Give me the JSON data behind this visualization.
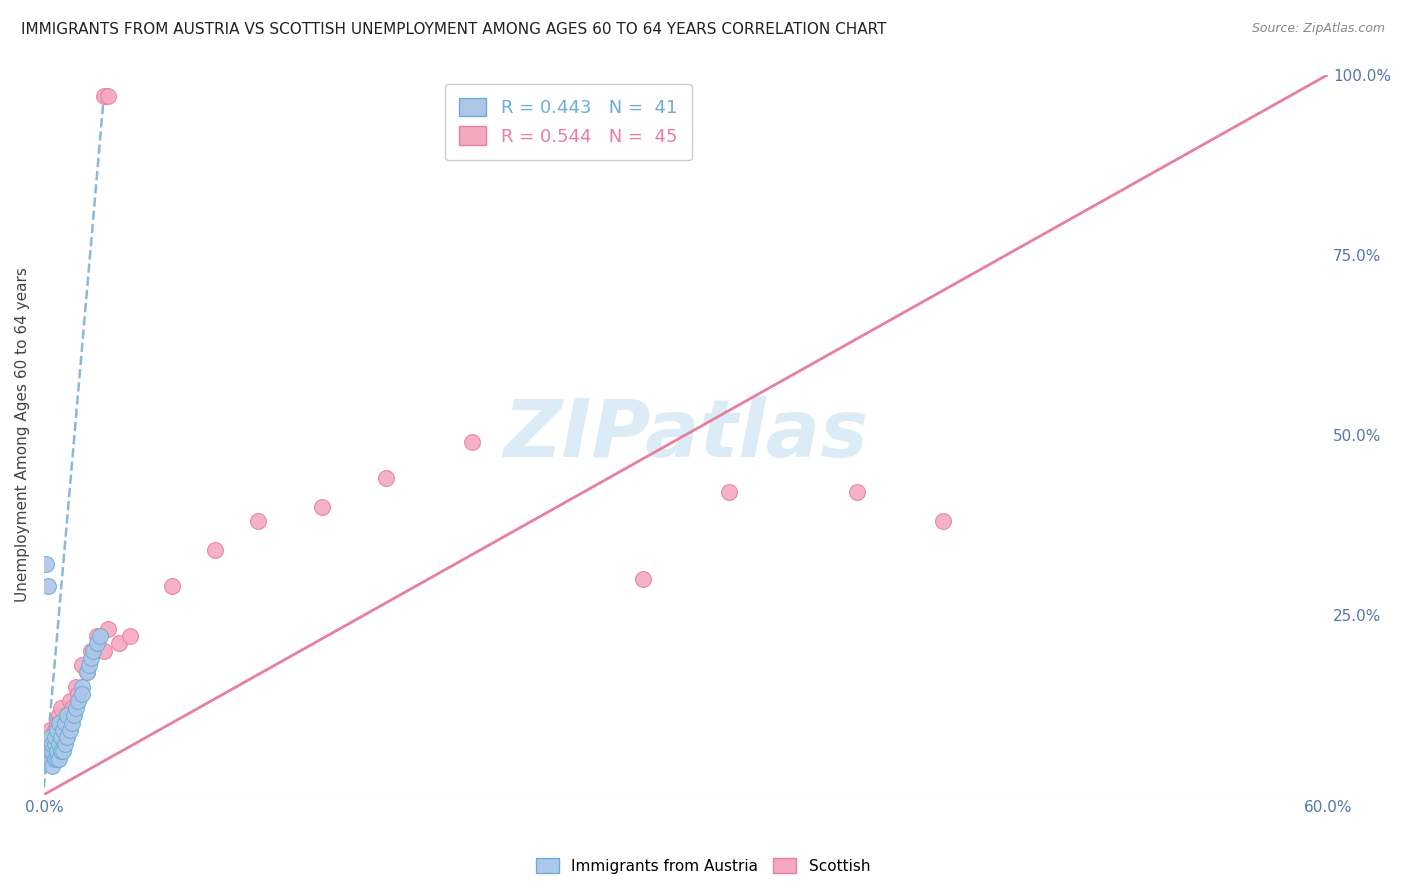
{
  "title": "IMMIGRANTS FROM AUSTRIA VS SCOTTISH UNEMPLOYMENT AMONG AGES 60 TO 64 YEARS CORRELATION CHART",
  "source": "Source: ZipAtlas.com",
  "ylabel": "Unemployment Among Ages 60 to 64 years",
  "xlim": [
    0.0,
    0.6
  ],
  "ylim": [
    0.0,
    1.0
  ],
  "xticks": [
    0.0,
    0.1,
    0.2,
    0.3,
    0.4,
    0.5,
    0.6
  ],
  "yticks_right": [
    0.0,
    0.25,
    0.5,
    0.75,
    1.0
  ],
  "ytick_right_labels": [
    "",
    "25.0%",
    "50.0%",
    "75.0%",
    "100.0%"
  ],
  "xtick_labels": [
    "0.0%",
    "",
    "",
    "",
    "",
    "",
    "60.0%"
  ],
  "legend_items": [
    {
      "label": "Immigrants from Austria",
      "color": "#aec6e8"
    },
    {
      "label": "Scottish",
      "color": "#f4a9c0"
    }
  ],
  "legend_text_blue": "R = 0.443   N =  41",
  "legend_text_pink": "R = 0.544   N =  45",
  "blue_color": "#aec6e8",
  "blue_edge_color": "#6aaed6",
  "pink_color": "#f4a9c0",
  "pink_edge_color": "#e87fa0",
  "blue_line_color": "#8ab8d8",
  "pink_line_color": "#e87fa0",
  "watermark_color": "#cce4f5",
  "watermark_text": "ZIPatlas",
  "background_color": "#ffffff",
  "grid_color": "#e0e0e8",
  "title_fontsize": 11,
  "source_fontsize": 9,
  "pink_line_x0": 0.0,
  "pink_line_y0": 0.0,
  "pink_line_x1": 0.6,
  "pink_line_y1": 1.0,
  "blue_line_x0": 0.0,
  "blue_line_y0": 0.01,
  "blue_line_x1": 0.028,
  "blue_line_y1": 0.97,
  "blue_scatter_x": [
    0.001,
    0.002,
    0.002,
    0.003,
    0.003,
    0.003,
    0.004,
    0.004,
    0.004,
    0.005,
    0.005,
    0.005,
    0.006,
    0.006,
    0.006,
    0.007,
    0.007,
    0.007,
    0.008,
    0.008,
    0.009,
    0.009,
    0.01,
    0.01,
    0.011,
    0.011,
    0.012,
    0.013,
    0.014,
    0.015,
    0.016,
    0.018,
    0.02,
    0.021,
    0.022,
    0.023,
    0.025,
    0.026,
    0.001,
    0.002,
    0.018
  ],
  "blue_scatter_y": [
    0.05,
    0.06,
    0.07,
    0.05,
    0.06,
    0.08,
    0.04,
    0.06,
    0.07,
    0.05,
    0.07,
    0.08,
    0.05,
    0.06,
    0.09,
    0.05,
    0.07,
    0.1,
    0.06,
    0.08,
    0.06,
    0.09,
    0.07,
    0.1,
    0.08,
    0.11,
    0.09,
    0.1,
    0.11,
    0.12,
    0.13,
    0.15,
    0.17,
    0.18,
    0.19,
    0.2,
    0.21,
    0.22,
    0.32,
    0.29,
    0.14
  ],
  "pink_scatter_x": [
    0.001,
    0.001,
    0.002,
    0.002,
    0.002,
    0.003,
    0.003,
    0.003,
    0.004,
    0.004,
    0.005,
    0.005,
    0.006,
    0.006,
    0.007,
    0.007,
    0.008,
    0.008,
    0.009,
    0.01,
    0.011,
    0.012,
    0.013,
    0.015,
    0.016,
    0.018,
    0.02,
    0.022,
    0.025,
    0.028,
    0.03,
    0.035,
    0.04,
    0.06,
    0.08,
    0.1,
    0.13,
    0.16,
    0.2,
    0.28,
    0.38,
    0.42,
    0.028,
    0.03,
    0.32
  ],
  "pink_scatter_y": [
    0.05,
    0.07,
    0.05,
    0.06,
    0.08,
    0.05,
    0.07,
    0.09,
    0.06,
    0.08,
    0.06,
    0.09,
    0.07,
    0.1,
    0.08,
    0.11,
    0.07,
    0.12,
    0.09,
    0.1,
    0.11,
    0.13,
    0.12,
    0.15,
    0.14,
    0.18,
    0.17,
    0.2,
    0.22,
    0.2,
    0.23,
    0.21,
    0.22,
    0.29,
    0.34,
    0.38,
    0.4,
    0.44,
    0.49,
    0.3,
    0.42,
    0.38,
    0.97,
    0.97,
    0.42
  ]
}
